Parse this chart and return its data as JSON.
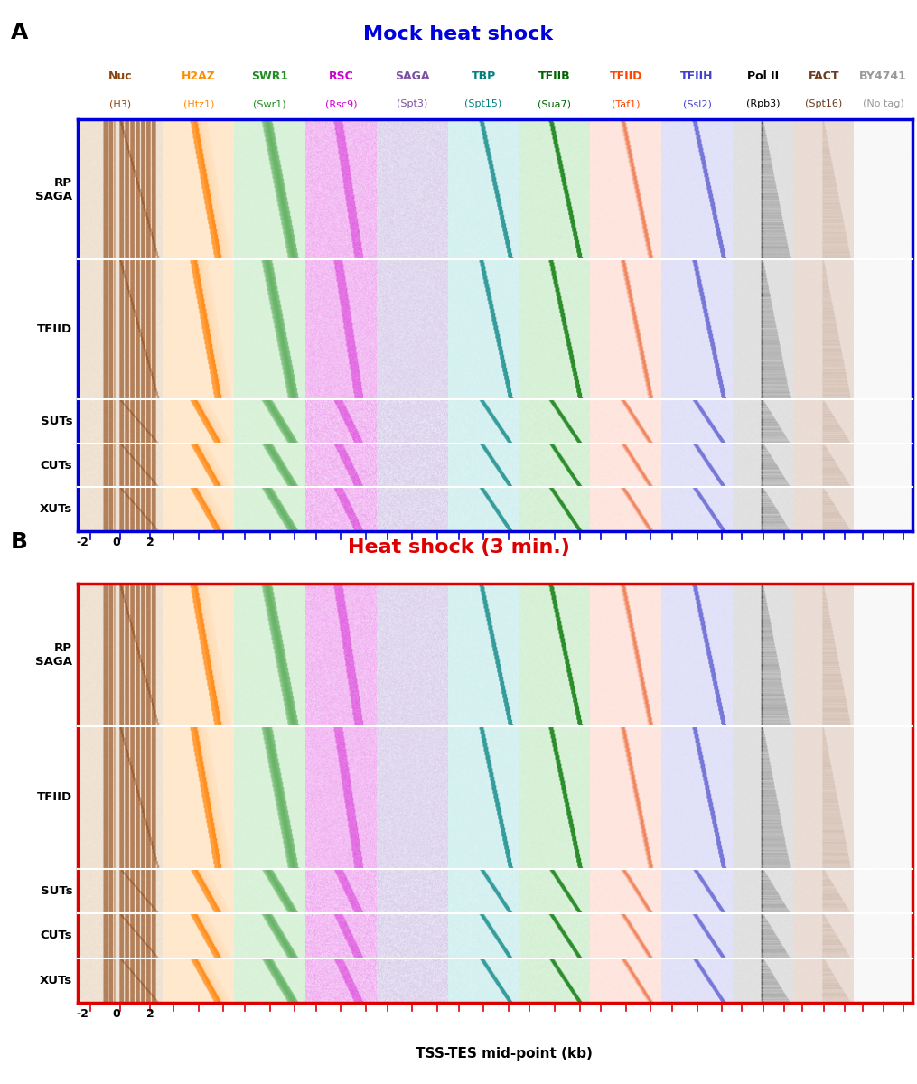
{
  "title_A": "Mock heat shock",
  "title_B": "Heat shock (3 min.)",
  "title_A_color": "#0000DD",
  "title_B_color": "#DD0000",
  "xlabel": "TSS-TES mid-point (kb)",
  "xtick_labels": [
    "-2",
    "0",
    "2"
  ],
  "row_labels": [
    "RP\nSAGA",
    "TFIID",
    "SUTs",
    "CUTs",
    "XUTs"
  ],
  "col_labels_top": [
    "Nuc",
    "H2AZ",
    "SWR1",
    "RSC",
    "SAGA",
    "TBP",
    "TFIIB",
    "TFIID",
    "TFIIH",
    "Pol II",
    "FACT",
    "BY4741"
  ],
  "col_labels_sub": [
    "(H3)",
    "(Htz1)",
    "(Swr1)",
    "(Rsc9)",
    "(Spt3)",
    "(Spt15)",
    "(Sua7)",
    "(Taf1)",
    "(Ssl2)",
    "(Rpb3)",
    "(Spt16)",
    "(No tag)"
  ],
  "col_colors_top": [
    "#8B4513",
    "#FF8C00",
    "#228B22",
    "#CC00CC",
    "#7B4FA0",
    "#008080",
    "#006400",
    "#FF4500",
    "#4040CC",
    "#000000",
    "#6B3A1F",
    "#999999"
  ],
  "col_colors_sub": [
    "#8B4513",
    "#FF8C00",
    "#228B22",
    "#CC00CC",
    "#7B4FA0",
    "#008080",
    "#006400",
    "#FF4500",
    "#4040CC",
    "#000000",
    "#6B3A1F",
    "#999999"
  ],
  "border_color_A": "#0000DD",
  "border_color_B": "#DD0000",
  "bg_color": "#FFFFFF",
  "n_cols": 12,
  "n_rows": 5,
  "label_A": "A",
  "label_B": "B"
}
